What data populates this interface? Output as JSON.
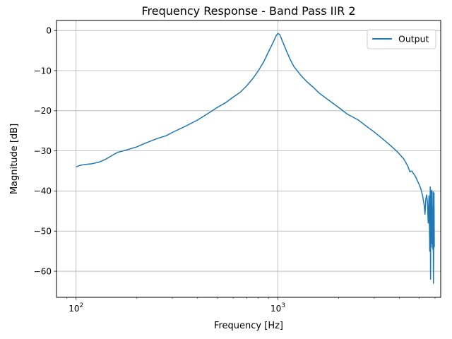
{
  "chart_data": {
    "type": "line",
    "title": "Frequency Response - Band Pass IIR 2",
    "xlabel": "Frequency [Hz]",
    "ylabel": "Magnitude [dB]",
    "xscale": "log",
    "xlim": [
      80,
      6400
    ],
    "ylim": [
      -66.5,
      2.5
    ],
    "grid": true,
    "legend_position": "top-right",
    "x_major_ticks": [
      {
        "value": 100,
        "base": "10",
        "exp": "2"
      },
      {
        "value": 1000,
        "base": "10",
        "exp": "3"
      }
    ],
    "y_ticks": [
      {
        "value": 0,
        "label": "0"
      },
      {
        "value": -10,
        "label": "−10"
      },
      {
        "value": -20,
        "label": "−20"
      },
      {
        "value": -30,
        "label": "−30"
      },
      {
        "value": -40,
        "label": "−40"
      },
      {
        "value": -50,
        "label": "−50"
      },
      {
        "value": -60,
        "label": "−60"
      }
    ],
    "series": [
      {
        "name": "Output",
        "color": "#1f77b4",
        "points": [
          [
            100,
            -34.0
          ],
          [
            105,
            -33.6
          ],
          [
            110,
            -33.4
          ],
          [
            120,
            -33.2
          ],
          [
            130,
            -32.8
          ],
          [
            140,
            -32.1
          ],
          [
            150,
            -31.2
          ],
          [
            160,
            -30.4
          ],
          [
            180,
            -29.7
          ],
          [
            200,
            -29.0
          ],
          [
            220,
            -28.1
          ],
          [
            250,
            -27.0
          ],
          [
            280,
            -26.2
          ],
          [
            300,
            -25.4
          ],
          [
            350,
            -23.8
          ],
          [
            400,
            -22.3
          ],
          [
            450,
            -20.7
          ],
          [
            500,
            -19.2
          ],
          [
            550,
            -18.0
          ],
          [
            600,
            -16.6
          ],
          [
            650,
            -15.4
          ],
          [
            700,
            -13.8
          ],
          [
            750,
            -12.0
          ],
          [
            800,
            -10.0
          ],
          [
            850,
            -7.8
          ],
          [
            900,
            -5.2
          ],
          [
            950,
            -2.8
          ],
          [
            980,
            -1.3
          ],
          [
            1000,
            -0.7
          ],
          [
            1020,
            -1.0
          ],
          [
            1050,
            -2.5
          ],
          [
            1100,
            -5.0
          ],
          [
            1150,
            -7.2
          ],
          [
            1200,
            -9.0
          ],
          [
            1300,
            -11.2
          ],
          [
            1400,
            -12.9
          ],
          [
            1500,
            -14.2
          ],
          [
            1600,
            -15.6
          ],
          [
            1800,
            -17.5
          ],
          [
            2000,
            -19.2
          ],
          [
            2200,
            -20.8
          ],
          [
            2500,
            -22.3
          ],
          [
            2800,
            -24.2
          ],
          [
            3000,
            -25.3
          ],
          [
            3300,
            -27.0
          ],
          [
            3600,
            -28.6
          ],
          [
            3900,
            -30.2
          ],
          [
            4200,
            -32.0
          ],
          [
            4400,
            -33.8
          ],
          [
            4500,
            -35.2
          ],
          [
            4600,
            -35.0
          ],
          [
            4800,
            -36.4
          ],
          [
            5000,
            -38.3
          ],
          [
            5100,
            -39.4
          ],
          [
            5200,
            -41.0
          ],
          [
            5300,
            -43.5
          ],
          [
            5350,
            -45.8
          ],
          [
            5400,
            -42.0
          ],
          [
            5450,
            -41.0
          ],
          [
            5500,
            -42.5
          ],
          [
            5550,
            -48.0
          ],
          [
            5600,
            -41.2
          ],
          [
            5650,
            -55.0
          ],
          [
            5680,
            -39.0
          ],
          [
            5700,
            -62.0
          ],
          [
            5720,
            -40.0
          ],
          [
            5750,
            -54.0
          ],
          [
            5780,
            -39.8
          ],
          [
            5800,
            -53.0
          ],
          [
            5830,
            -44.0
          ],
          [
            5850,
            -54.5
          ],
          [
            5870,
            -40.2
          ],
          [
            5890,
            -63.0
          ],
          [
            5910,
            -53.5
          ],
          [
            5930,
            -40.5
          ],
          [
            5950,
            -54.0
          ]
        ]
      }
    ]
  }
}
